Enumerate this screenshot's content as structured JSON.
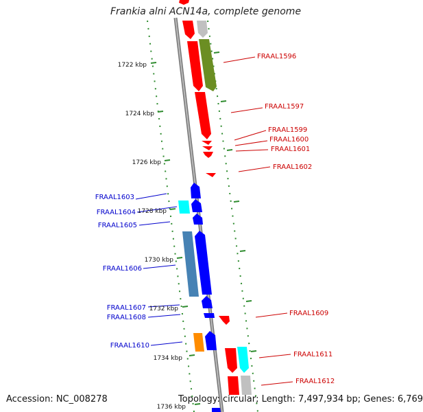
{
  "title": "Frankia alni ACN14a, complete genome",
  "footer": {
    "accession": "Accession: NC_008278",
    "summary": "Topology: circular; Length: 7,497,934 bp; Genes: 6,769"
  },
  "ruler": [
    "1722 kbp",
    "1724 kbp",
    "1726 kbp",
    "1728 kbp",
    "1730 kbp",
    "1732 kbp",
    "1734 kbp",
    "1736 kbp"
  ],
  "labels_right": [
    "FRAAL1596",
    "FRAAL1597",
    "FRAAL1599",
    "FRAAL1600",
    "FRAAL1601",
    "FRAAL1602",
    "FRAAL1609",
    "FRAAL1611",
    "FRAAL1612"
  ],
  "labels_left": [
    "FRAAL1603",
    "FRAAL1604",
    "FRAAL1605",
    "FRAAL1606",
    "FRAAL1607",
    "FRAAL1608",
    "FRAAL1610"
  ],
  "colors": {
    "backbone": "#888888",
    "dots": "#2e8b2e",
    "red": "#ff0000",
    "blue": "#0000ff",
    "cyan": "#00ffff",
    "steelblue": "#4682b4",
    "olive": "#6b8e23",
    "gray": "#c0c0c0",
    "orange": "#ff8c00",
    "label_red": "#cc0000",
    "label_blue": "#0000cc"
  }
}
